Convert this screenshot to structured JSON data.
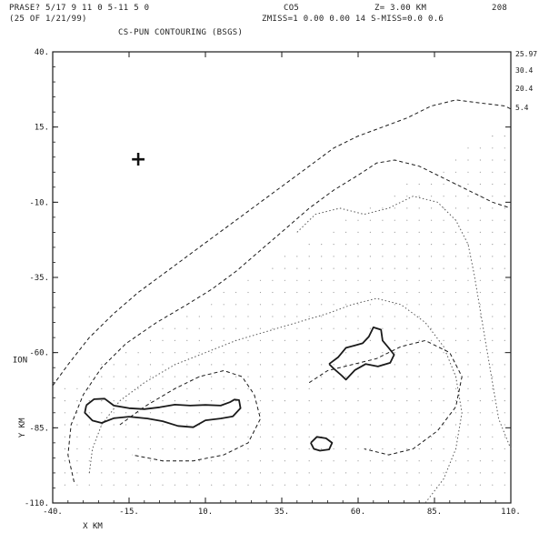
{
  "header": {
    "line1_left": "PRASE? 5/17 9   11 0 5-11 5 0",
    "line1_mid": "CO5",
    "line1_right": "Z= 3.00 KM",
    "line1_far": "208",
    "line2_left": "(25 OF 1/21/99)",
    "line2_mid": "ZMISS=1 0.00  0.00 14  S-MISS=0.0 0.6",
    "line3_title": "CS-PUN  CONTOURING (BSGS)"
  },
  "chart_data": {
    "type": "contour",
    "title": "CS-PUN  CONTOURING (BSGS)",
    "xlabel": "X KM",
    "ylabel": "Y KM",
    "ylabel_extra": "ION",
    "xlim": [
      -40,
      110
    ],
    "ylim": [
      -110,
      40
    ],
    "x_ticks": [
      "-40.",
      "-15.",
      "10.",
      "35.",
      "60.",
      "85.",
      "110."
    ],
    "y_ticks": [
      "40.",
      "15.",
      "-10.",
      "-35.",
      "-60.",
      "-85.",
      "-110."
    ],
    "x_tick_values": [
      -40,
      -15,
      10,
      35,
      60,
      85,
      110
    ],
    "y_tick_values": [
      40,
      15,
      -10,
      -35,
      -60,
      -85,
      -110
    ],
    "side_labels": [
      "25.97",
      "30.4",
      "20.4",
      "5.4"
    ],
    "marker": {
      "symbol": "+",
      "x": -12,
      "y": 4
    },
    "contours": [
      {
        "style": "dashed",
        "level": "outer",
        "points": [
          [
            -40,
            -71
          ],
          [
            -35,
            -64
          ],
          [
            -28,
            -55
          ],
          [
            -20,
            -47
          ],
          [
            -12,
            -40
          ],
          [
            -4,
            -34
          ],
          [
            4,
            -28
          ],
          [
            12,
            -22
          ],
          [
            20,
            -16
          ],
          [
            28,
            -10
          ],
          [
            36,
            -4
          ],
          [
            44,
            2
          ],
          [
            52,
            8
          ],
          [
            60,
            12
          ],
          [
            68,
            15
          ],
          [
            76,
            18
          ],
          [
            84,
            22
          ],
          [
            92,
            24
          ],
          [
            100,
            23
          ],
          [
            108,
            22
          ],
          [
            110,
            21
          ]
        ]
      },
      {
        "style": "dashed",
        "level": "middle",
        "points": [
          [
            -33,
            -103
          ],
          [
            -35,
            -94
          ],
          [
            -34,
            -84
          ],
          [
            -30,
            -74
          ],
          [
            -24,
            -65
          ],
          [
            -16,
            -57
          ],
          [
            -6,
            -50
          ],
          [
            4,
            -44
          ],
          [
            12,
            -39
          ],
          [
            20,
            -33
          ],
          [
            28,
            -26
          ],
          [
            36,
            -19
          ],
          [
            44,
            -12
          ],
          [
            52,
            -6
          ],
          [
            60,
            -1
          ],
          [
            66,
            3
          ],
          [
            72,
            4
          ],
          [
            80,
            2
          ],
          [
            88,
            -2
          ],
          [
            96,
            -6
          ],
          [
            104,
            -10
          ],
          [
            110,
            -12
          ]
        ]
      },
      {
        "style": "dotted",
        "level": "inner",
        "points": [
          [
            -28,
            -100
          ],
          [
            -27,
            -92
          ],
          [
            -24,
            -84
          ],
          [
            -18,
            -76
          ],
          [
            -10,
            -70
          ],
          [
            0,
            -64
          ],
          [
            10,
            -60
          ],
          [
            20,
            -56
          ],
          [
            30,
            -53
          ],
          [
            40,
            -50
          ],
          [
            50,
            -47
          ],
          [
            58,
            -44
          ],
          [
            66,
            -42
          ],
          [
            74,
            -44
          ],
          [
            82,
            -50
          ],
          [
            88,
            -58
          ],
          [
            92,
            -68
          ],
          [
            94,
            -80
          ],
          [
            92,
            -92
          ],
          [
            88,
            -102
          ],
          [
            82,
            -110
          ]
        ]
      },
      {
        "style": "dotted",
        "level": "inner",
        "points": [
          [
            40,
            -20
          ],
          [
            46,
            -14
          ],
          [
            54,
            -12
          ],
          [
            62,
            -14
          ],
          [
            70,
            -12
          ],
          [
            78,
            -8
          ],
          [
            86,
            -10
          ],
          [
            92,
            -16
          ],
          [
            96,
            -24
          ],
          [
            98,
            -34
          ],
          [
            100,
            -46
          ],
          [
            102,
            -58
          ],
          [
            104,
            -70
          ],
          [
            106,
            -82
          ],
          [
            110,
            -92
          ]
        ]
      },
      {
        "style": "dashed",
        "level": "inner",
        "points": [
          [
            -18,
            -84
          ],
          [
            -10,
            -78
          ],
          [
            0,
            -72
          ],
          [
            8,
            -68
          ],
          [
            16,
            -66
          ],
          [
            22,
            -68
          ],
          [
            26,
            -74
          ],
          [
            28,
            -82
          ],
          [
            24,
            -90
          ],
          [
            16,
            -94
          ],
          [
            6,
            -96
          ],
          [
            -4,
            -96
          ],
          [
            -14,
            -94
          ]
        ]
      },
      {
        "style": "dashed",
        "level": "inner",
        "points": [
          [
            44,
            -70
          ],
          [
            50,
            -66
          ],
          [
            58,
            -64
          ],
          [
            66,
            -62
          ],
          [
            74,
            -58
          ],
          [
            82,
            -56
          ],
          [
            90,
            -60
          ],
          [
            94,
            -68
          ],
          [
            92,
            -78
          ],
          [
            86,
            -86
          ],
          [
            78,
            -92
          ],
          [
            70,
            -94
          ],
          [
            62,
            -92
          ]
        ]
      },
      {
        "style": "solid",
        "level": "highest",
        "points": [
          [
            -29,
            -77.5
          ],
          [
            -26.5,
            -75.5
          ],
          [
            -23,
            -75.3
          ],
          [
            -20,
            -77.6
          ],
          [
            -15,
            -78.5
          ],
          [
            -10,
            -78.8
          ],
          [
            -5,
            -78.2
          ],
          [
            0,
            -77.3
          ],
          [
            5,
            -77.6
          ],
          [
            10,
            -77.4
          ],
          [
            15,
            -77.6
          ],
          [
            18,
            -76.5
          ],
          [
            19.5,
            -75.6
          ],
          [
            21,
            -75.8
          ],
          [
            21.5,
            -78.5
          ],
          [
            19,
            -81.2
          ],
          [
            15,
            -81.9
          ],
          [
            10,
            -82.5
          ],
          [
            6,
            -84.8
          ],
          [
            1,
            -84.4
          ],
          [
            -4,
            -82.8
          ],
          [
            -9,
            -81.9
          ],
          [
            -15,
            -81.3
          ],
          [
            -20,
            -81.8
          ],
          [
            -24,
            -83.4
          ],
          [
            -27,
            -82.6
          ],
          [
            -29.5,
            -80
          ],
          [
            -29,
            -77.5
          ]
        ]
      },
      {
        "style": "solid",
        "level": "highest",
        "points": [
          [
            50.5,
            -63.8
          ],
          [
            53.5,
            -61.5
          ],
          [
            56,
            -58.4
          ],
          [
            59,
            -57.6
          ],
          [
            61.5,
            -56.9
          ],
          [
            63.5,
            -54.7
          ],
          [
            65,
            -51.6
          ],
          [
            67.5,
            -52.4
          ],
          [
            68,
            -56
          ],
          [
            70,
            -58.4
          ],
          [
            71.8,
            -60.7
          ],
          [
            70.5,
            -63.4
          ],
          [
            66.5,
            -64.6
          ],
          [
            62.5,
            -63.8
          ],
          [
            59,
            -65.8
          ],
          [
            56,
            -69
          ],
          [
            54.5,
            -67.5
          ],
          [
            52,
            -65.3
          ],
          [
            50.5,
            -63.8
          ]
        ]
      },
      {
        "style": "solid",
        "level": "highest",
        "points": [
          [
            44.5,
            -90
          ],
          [
            46.5,
            -88
          ],
          [
            49.5,
            -88.5
          ],
          [
            51.5,
            -90
          ],
          [
            50.5,
            -92.2
          ],
          [
            47.5,
            -92.6
          ],
          [
            45.5,
            -92
          ],
          [
            44.5,
            -90
          ]
        ]
      }
    ]
  }
}
